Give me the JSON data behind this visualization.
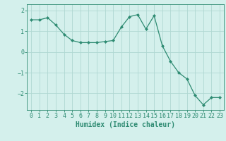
{
  "x": [
    0,
    1,
    2,
    3,
    4,
    5,
    6,
    7,
    8,
    9,
    10,
    11,
    12,
    13,
    14,
    15,
    16,
    17,
    18,
    19,
    20,
    21,
    22,
    23
  ],
  "y": [
    1.55,
    1.55,
    1.65,
    1.3,
    0.85,
    0.55,
    0.45,
    0.45,
    0.45,
    0.5,
    0.55,
    1.2,
    1.7,
    1.8,
    1.1,
    1.75,
    0.3,
    -0.45,
    -1.0,
    -1.3,
    -2.1,
    -2.55,
    -2.2,
    -2.2
  ],
  "line_color": "#2e8b72",
  "marker": "D",
  "marker_size": 2,
  "bg_color": "#d4f0ec",
  "grid_color": "#b0d8d2",
  "xlabel": "Humidex (Indice chaleur)",
  "xlim": [
    -0.5,
    23.5
  ],
  "ylim": [
    -2.8,
    2.3
  ],
  "yticks": [
    -2,
    -1,
    0,
    1,
    2
  ],
  "xticks": [
    0,
    1,
    2,
    3,
    4,
    5,
    6,
    7,
    8,
    9,
    10,
    11,
    12,
    13,
    14,
    15,
    16,
    17,
    18,
    19,
    20,
    21,
    22,
    23
  ],
  "tick_color": "#2e8b72",
  "label_color": "#2e8b72",
  "font_size": 6,
  "xlabel_fontsize": 7
}
